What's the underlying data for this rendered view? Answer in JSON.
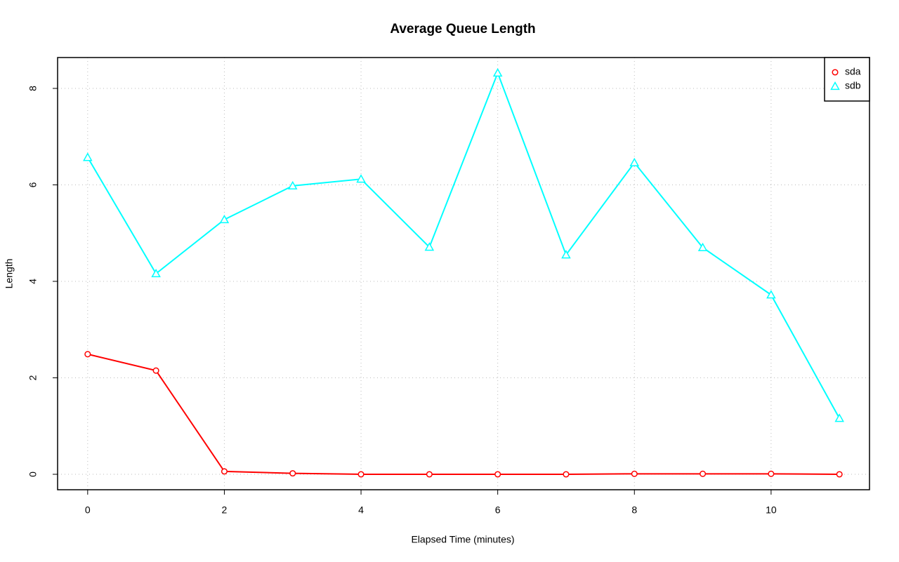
{
  "chart_data": {
    "type": "line",
    "title": "Average Queue Length",
    "x_label": "Elapsed Time (minutes)",
    "y_label": "Length",
    "x": [
      0,
      1,
      2,
      3,
      4,
      5,
      6,
      7,
      8,
      9,
      10,
      11
    ],
    "series": [
      {
        "name": "sda",
        "color": "#ff0000",
        "marker": "circle",
        "values": [
          2.49,
          2.15,
          0.06,
          0.02,
          0,
          0,
          0,
          0,
          0.01,
          0.01,
          0.01,
          0
        ]
      },
      {
        "name": "sdb",
        "color": "#00ffff",
        "marker": "triangle",
        "values": [
          6.57,
          4.16,
          5.28,
          5.98,
          6.12,
          4.71,
          8.32,
          4.55,
          6.46,
          4.7,
          3.72,
          1.16
        ]
      }
    ],
    "xlim": [
      -0.44,
      11.44
    ],
    "ylim": [
      -0.32,
      8.64
    ],
    "xticks": [
      0,
      2,
      4,
      6,
      8,
      10
    ],
    "yticks": [
      0,
      2,
      4,
      6,
      8
    ],
    "grid": true,
    "legend": "top-right"
  }
}
